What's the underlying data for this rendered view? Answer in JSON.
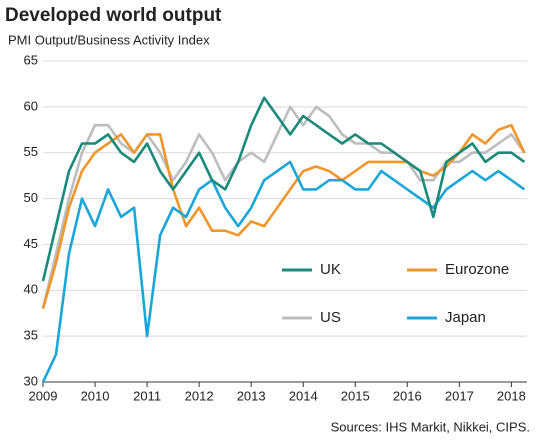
{
  "chart_data": {
    "type": "line",
    "title": "Developed world output",
    "subtitle": "PMI Output/Business Activity Index",
    "source": "Sources: IHS Markit, Nikkei, CIPS.",
    "x": [
      2009,
      2009.25,
      2009.5,
      2009.75,
      2010,
      2010.25,
      2010.5,
      2010.75,
      2011,
      2011.25,
      2011.5,
      2011.75,
      2012,
      2012.25,
      2012.5,
      2012.75,
      2013,
      2013.25,
      2013.5,
      2013.75,
      2014,
      2014.25,
      2014.5,
      2014.75,
      2015,
      2015.25,
      2015.5,
      2015.75,
      2016,
      2016.25,
      2016.5,
      2016.75,
      2017,
      2017.25,
      2017.5,
      2017.75,
      2018,
      2018.25
    ],
    "series": [
      {
        "name": "UK",
        "color": "#1a8a7a",
        "values": [
          41,
          47,
          53,
          56,
          56,
          57,
          55,
          54,
          56,
          53,
          51,
          53,
          55,
          52,
          51,
          54,
          58,
          61,
          59,
          57,
          59,
          58,
          57,
          56,
          57,
          56,
          56,
          55,
          54,
          53,
          48,
          54,
          55,
          56,
          54,
          55,
          55,
          54
        ]
      },
      {
        "name": "Eurozone",
        "color": "#f0962a",
        "values": [
          38,
          43,
          49,
          53,
          55,
          56,
          57,
          55,
          57,
          57,
          51,
          47,
          49,
          46.5,
          46.5,
          46,
          47.5,
          47,
          49,
          51,
          53,
          53.5,
          53,
          52,
          53,
          54,
          54,
          54,
          54,
          53,
          52.5,
          53.5,
          55,
          57,
          56,
          57.5,
          58,
          55
        ]
      },
      {
        "name": "US",
        "color": "#bdbdbd",
        "values": [
          38,
          44,
          50,
          55,
          58,
          58,
          56,
          55,
          57,
          55,
          52,
          54,
          57,
          55,
          52,
          54,
          55,
          54,
          57,
          60,
          58,
          60,
          59,
          57,
          56,
          56,
          55,
          55,
          54,
          52,
          52,
          54,
          54,
          55,
          55,
          56,
          57,
          55
        ]
      },
      {
        "name": "Japan",
        "color": "#1aa6d8",
        "values": [
          30,
          33,
          44,
          50,
          47,
          51,
          48,
          49,
          35,
          46,
          49,
          48,
          51,
          52,
          49,
          47,
          49,
          52,
          53,
          54,
          51,
          51,
          52,
          52,
          51,
          51,
          53,
          52,
          51,
          50,
          49,
          51,
          52,
          53,
          52,
          53,
          52,
          51
        ]
      }
    ],
    "xlim": [
      2009,
      2018.3
    ],
    "xticks": [
      2009,
      2010,
      2011,
      2012,
      2013,
      2014,
      2015,
      2016,
      2017,
      2018
    ],
    "ylim": [
      30,
      65
    ],
    "yticks": [
      30,
      35,
      40,
      45,
      50,
      55,
      60,
      65
    ],
    "grid": true,
    "legend": "lower right"
  }
}
